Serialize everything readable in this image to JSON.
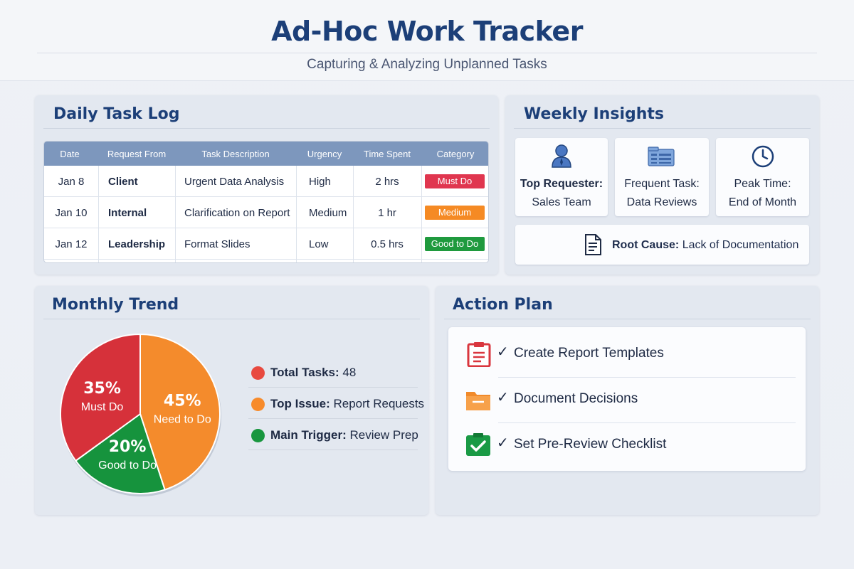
{
  "header": {
    "title": "Ad-Hoc Work Tracker",
    "subtitle": "Capturing & Analyzing Unplanned Tasks"
  },
  "daily_log": {
    "title": "Daily Task Log",
    "columns": [
      "Date",
      "Request From",
      "Task Description",
      "Urgency",
      "Time Spent",
      "Category"
    ],
    "rows": [
      {
        "date": "Jan 8",
        "from": "Client",
        "desc": "Urgent Data Analysis",
        "urgency": "High",
        "time": "2 hrs",
        "category": "Must Do",
        "category_color": "#e0364f"
      },
      {
        "date": "Jan 10",
        "from": "Internal",
        "desc": "Clarification on Report",
        "urgency": "Medium",
        "time": "1 hr",
        "category": "Medium",
        "category_color": "#f58a24"
      },
      {
        "date": "Jan 12",
        "from": "Leadership",
        "desc": "Format Slides",
        "urgency": "Low",
        "time": "0.5 hrs",
        "category": "Good to Do",
        "category_color": "#1f9a3e"
      }
    ]
  },
  "weekly": {
    "title": "Weekly Insights",
    "cards": [
      {
        "icon": "user-icon",
        "label": "Top Requester:",
        "value": "Sales Team"
      },
      {
        "icon": "data-table-icon",
        "label": "Frequent Task:",
        "value": "Data Reviews"
      },
      {
        "icon": "clock-icon",
        "label": "Peak Time:",
        "value": "End of Month"
      }
    ],
    "root_cause_icon": "document-icon",
    "root_cause_label": "Root Cause:",
    "root_cause_value": "Lack of Documentation"
  },
  "monthly": {
    "title": "Monthly Trend",
    "legend": [
      {
        "label": "Total Tasks:",
        "value": "48",
        "color": "#e8493f"
      },
      {
        "label": "Top Issue:",
        "value": "Report Requests",
        "color": "#f78b2b"
      },
      {
        "label": "Main Trigger:",
        "value": "Review Prep",
        "color": "#18963e"
      }
    ]
  },
  "chart_data": {
    "type": "pie",
    "categories": [
      "Must Do",
      "Need to Do",
      "Good to Do"
    ],
    "values": [
      35,
      45,
      20
    ],
    "labels": [
      "35%",
      "45%",
      "20%"
    ],
    "colors": [
      "#d6313a",
      "#f48b2c",
      "#16933d"
    ]
  },
  "action_plan": {
    "title": "Action Plan",
    "items": [
      {
        "icon": "clipboard-icon",
        "check": "✓",
        "label": "Create Report Templates",
        "color": "#d9363e"
      },
      {
        "icon": "folder-icon",
        "check": "✓",
        "label": "Document Decisions",
        "color": "#f18a2a"
      },
      {
        "icon": "checklist-icon",
        "check": "✓",
        "label": "Set Pre-Review Checklist",
        "color": "#1a9a45"
      }
    ]
  }
}
